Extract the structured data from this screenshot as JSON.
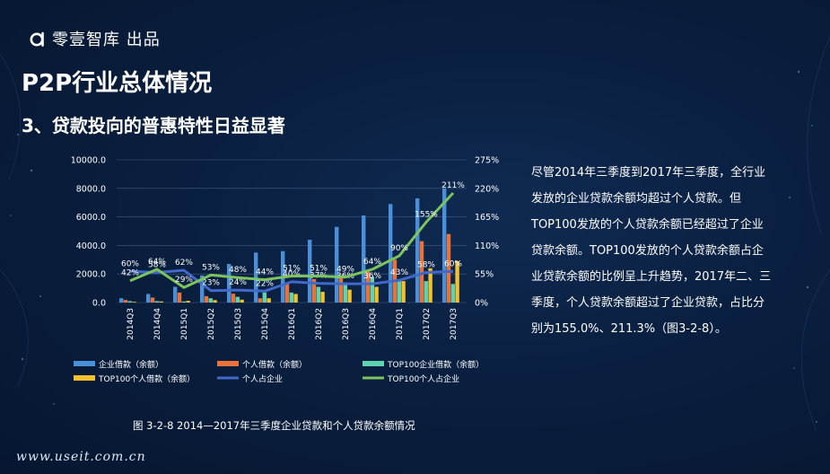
{
  "brand": {
    "logo_icon": "brand-a-icon",
    "name": "零壹智库 出品"
  },
  "page_title": "P2P行业总体情况",
  "section_title": "3、贷款投向的普惠特性日益显著",
  "caption": "图 3-2-8  2014—2017年三季度企业贷款和个人贷款余额情况",
  "description": "尽管2014年三季度到2017年三季度，全行业发放的企业贷款余额均超过个人贷款。但TOP100发放的个人贷款余额已经超过了企业贷款余额。TOP100发放的个人贷款余额占企业贷款余额的比例呈上升趋势，2017年二、三季度，个人贷款余额超过了企业贷款，占比分别为155.0%、211.3%（图3-2-8）。",
  "footer": "www.useit.com.cn",
  "chart_data": {
    "type": "bar",
    "categories": [
      "2014Q3",
      "2014Q4",
      "2015Q1",
      "2015Q2",
      "2015Q3",
      "2015Q4",
      "2016Q1",
      "2016Q2",
      "2016Q3",
      "2016Q4",
      "2017Q1",
      "2017Q2",
      "2017Q3"
    ],
    "y_ticks": [
      "0.0",
      "2000.0",
      "4000.0",
      "6000.0",
      "8000.0",
      "10000.0"
    ],
    "y2_ticks": [
      "0%",
      "55%",
      "110%",
      "165%",
      "220%",
      "275%"
    ],
    "ylim": [
      0,
      10000
    ],
    "y2lim": [
      0,
      275
    ],
    "grid": true,
    "legend_position": "bottom",
    "bar_series": [
      {
        "name": "企业借款（余额）",
        "color": "#4a90d9",
        "values": [
          300,
          600,
          1100,
          1900,
          2700,
          3500,
          3600,
          4400,
          5300,
          6100,
          6900,
          7300,
          8000
        ]
      },
      {
        "name": "个人借款（余额）",
        "color": "#e8733a",
        "values": [
          180,
          350,
          700,
          450,
          620,
          300,
          1350,
          1650,
          1900,
          2200,
          3000,
          4300,
          4800
        ]
      },
      {
        "name": "TOP100企业借款（余额）",
        "color": "#5fd3b0",
        "values": [
          100,
          100,
          80,
          300,
          400,
          700,
          700,
          1100,
          1400,
          1800,
          1500,
          1500,
          1300
        ]
      },
      {
        "name": "TOP100个人借款（余额）",
        "color": "#f2c12e",
        "values": [
          50,
          80,
          120,
          170,
          200,
          300,
          600,
          750,
          900,
          1100,
          1500,
          2400,
          2900
        ]
      }
    ],
    "line_series": [
      {
        "name": "个人占企业",
        "color": "#4169c9",
        "values": [
          60,
          58,
          62,
          23,
          24,
          22,
          40,
          37,
          36,
          36,
          43,
          58,
          60
        ],
        "labels": [
          "60%",
          "58%",
          "62%",
          "23%",
          "24%",
          "22%",
          "40%",
          "37%",
          "36%",
          "36%",
          "43%",
          "58%",
          "60%"
        ]
      },
      {
        "name": "TOP100个人占企业",
        "color": "#7cc45c",
        "values": [
          42,
          64,
          29,
          53,
          48,
          44,
          51,
          51,
          49,
          64,
          90,
          155,
          211
        ],
        "labels": [
          "42%",
          "64%",
          "29%",
          "53%",
          "48%",
          "44%",
          "51%",
          "51%",
          "49%",
          "64%",
          "90%",
          "155%",
          "211%"
        ]
      }
    ]
  }
}
